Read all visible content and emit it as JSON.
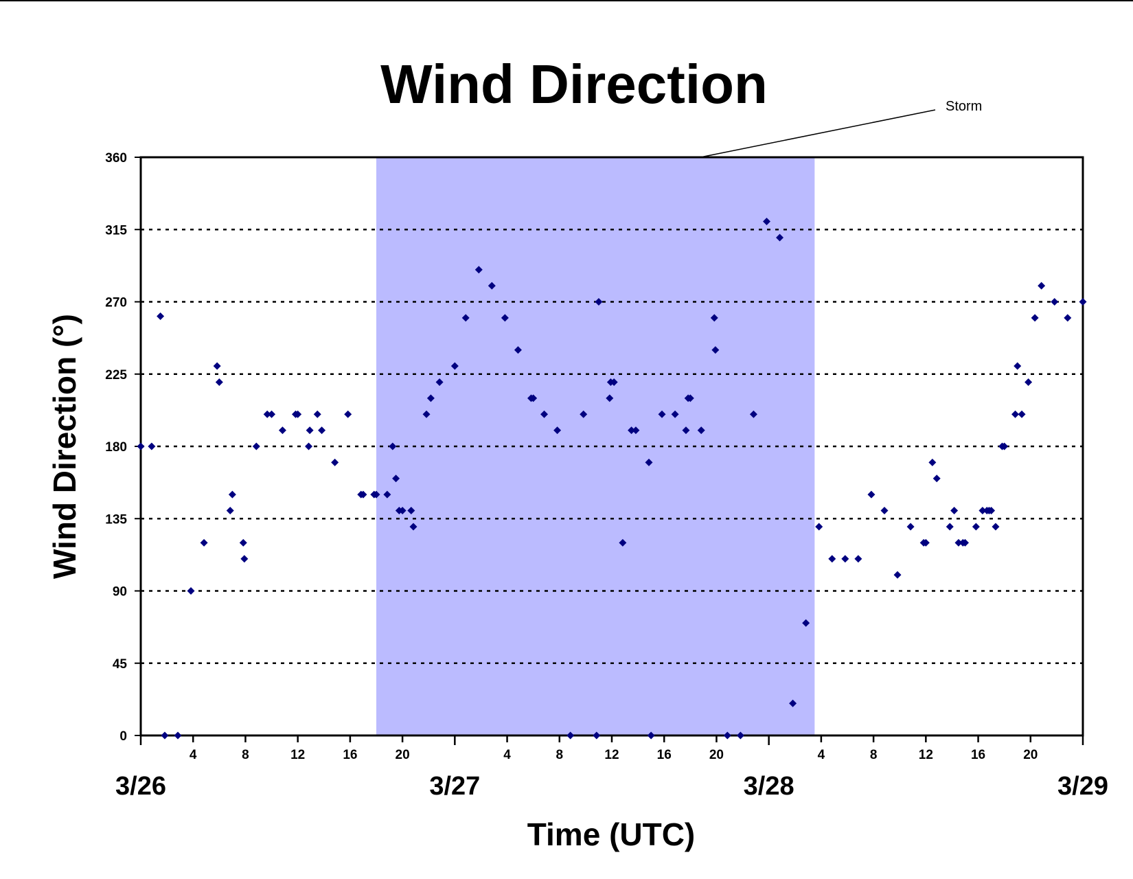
{
  "chart_data": {
    "type": "scatter",
    "title": "Wind Direction",
    "xlabel": "Time (UTC)",
    "ylabel": "Wind Direction (°)",
    "ylim": [
      0,
      360
    ],
    "xlim": [
      "3/26 00:00",
      "3/29 00:00"
    ],
    "yticks": [
      "0",
      "45",
      "90",
      "135",
      "180",
      "225",
      "270",
      "315",
      "360"
    ],
    "xtick_hour_labels": [
      "4",
      "8",
      "12",
      "16",
      "20",
      "4",
      "8",
      "12",
      "16",
      "20",
      "4",
      "8",
      "12",
      "16",
      "20"
    ],
    "date_labels": [
      "3/26",
      "3/27",
      "3/28",
      "3/29"
    ],
    "grid": "horizontal dotted lines at each y tick",
    "marker_color": "#000080",
    "shaded_region": {
      "label": "Storm",
      "start": "3/26 18:00",
      "end": "3/28 03:30",
      "color": "#BBBBFF"
    },
    "series": [
      {
        "points": [
          [
            "3/26 00:00",
            180
          ],
          [
            "3/26 00:50",
            180
          ],
          [
            "3/26 01:30",
            261
          ],
          [
            "3/26 01:50",
            0
          ],
          [
            "3/26 02:50",
            0
          ],
          [
            "3/26 03:50",
            90
          ],
          [
            "3/26 04:50",
            120
          ],
          [
            "3/26 05:50",
            230
          ],
          [
            "3/26 06:00",
            220
          ],
          [
            "3/26 06:50",
            140
          ],
          [
            "3/26 07:00",
            150
          ],
          [
            "3/26 07:50",
            120
          ],
          [
            "3/26 07:55",
            110
          ],
          [
            "3/26 08:50",
            180
          ],
          [
            "3/26 09:40",
            200
          ],
          [
            "3/26 10:00",
            200
          ],
          [
            "3/26 10:50",
            190
          ],
          [
            "3/26 11:50",
            200
          ],
          [
            "3/26 12:00",
            200
          ],
          [
            "3/26 12:50",
            180
          ],
          [
            "3/26 12:55",
            190
          ],
          [
            "3/26 13:30",
            200
          ],
          [
            "3/26 13:50",
            190
          ],
          [
            "3/26 14:50",
            170
          ],
          [
            "3/26 15:50",
            200
          ],
          [
            "3/26 16:50",
            150
          ],
          [
            "3/26 17:00",
            150
          ],
          [
            "3/26 17:50",
            150
          ],
          [
            "3/26 18:00",
            150
          ],
          [
            "3/26 18:50",
            150
          ],
          [
            "3/26 19:15",
            180
          ],
          [
            "3/26 19:30",
            160
          ],
          [
            "3/26 19:45",
            140
          ],
          [
            "3/26 20:00",
            140
          ],
          [
            "3/26 20:40",
            140
          ],
          [
            "3/26 20:50",
            130
          ],
          [
            "3/26 21:50",
            200
          ],
          [
            "3/26 22:10",
            210
          ],
          [
            "3/26 22:50",
            220
          ],
          [
            "3/27 00:00",
            230
          ],
          [
            "3/27 00:50",
            260
          ],
          [
            "3/27 01:50",
            290
          ],
          [
            "3/27 02:50",
            280
          ],
          [
            "3/27 03:50",
            260
          ],
          [
            "3/27 04:50",
            240
          ],
          [
            "3/27 05:50",
            210
          ],
          [
            "3/27 06:00",
            210
          ],
          [
            "3/27 06:50",
            200
          ],
          [
            "3/27 07:50",
            190
          ],
          [
            "3/27 08:50",
            0
          ],
          [
            "3/27 09:50",
            200
          ],
          [
            "3/27 10:50",
            0
          ],
          [
            "3/27 11:00",
            270
          ],
          [
            "3/27 11:50",
            210
          ],
          [
            "3/27 11:55",
            220
          ],
          [
            "3/27 12:10",
            220
          ],
          [
            "3/27 12:50",
            120
          ],
          [
            "3/27 13:30",
            190
          ],
          [
            "3/27 13:50",
            190
          ],
          [
            "3/27 14:50",
            170
          ],
          [
            "3/27 15:00",
            0
          ],
          [
            "3/27 15:50",
            200
          ],
          [
            "3/27 16:50",
            200
          ],
          [
            "3/27 17:40",
            190
          ],
          [
            "3/27 17:50",
            210
          ],
          [
            "3/27 18:00",
            210
          ],
          [
            "3/27 18:50",
            190
          ],
          [
            "3/27 19:50",
            260
          ],
          [
            "3/27 19:55",
            240
          ],
          [
            "3/27 20:50",
            0
          ],
          [
            "3/27 21:50",
            0
          ],
          [
            "3/27 22:50",
            200
          ],
          [
            "3/27 23:50",
            320
          ],
          [
            "3/28 00:50",
            310
          ],
          [
            "3/28 01:50",
            20
          ],
          [
            "3/28 02:50",
            70
          ],
          [
            "3/28 03:50",
            130
          ],
          [
            "3/28 04:50",
            110
          ],
          [
            "3/28 05:50",
            110
          ],
          [
            "3/28 06:50",
            110
          ],
          [
            "3/28 07:50",
            150
          ],
          [
            "3/28 08:50",
            140
          ],
          [
            "3/28 09:50",
            100
          ],
          [
            "3/28 10:50",
            130
          ],
          [
            "3/28 11:50",
            120
          ],
          [
            "3/28 12:00",
            120
          ],
          [
            "3/28 12:30",
            170
          ],
          [
            "3/28 12:50",
            160
          ],
          [
            "3/28 13:50",
            130
          ],
          [
            "3/28 14:10",
            140
          ],
          [
            "3/28 14:30",
            120
          ],
          [
            "3/28 14:50",
            120
          ],
          [
            "3/28 15:00",
            120
          ],
          [
            "3/28 15:50",
            130
          ],
          [
            "3/28 16:20",
            140
          ],
          [
            "3/28 16:40",
            140
          ],
          [
            "3/28 16:50",
            140
          ],
          [
            "3/28 17:00",
            140
          ],
          [
            "3/28 17:20",
            130
          ],
          [
            "3/28 17:50",
            180
          ],
          [
            "3/28 18:00",
            180
          ],
          [
            "3/28 18:50",
            200
          ],
          [
            "3/28 19:00",
            230
          ],
          [
            "3/28 19:20",
            200
          ],
          [
            "3/28 19:50",
            220
          ],
          [
            "3/28 20:20",
            260
          ],
          [
            "3/28 20:50",
            280
          ],
          [
            "3/28 21:50",
            270
          ],
          [
            "3/28 22:50",
            260
          ],
          [
            "3/29 00:00",
            270
          ]
        ]
      }
    ]
  }
}
